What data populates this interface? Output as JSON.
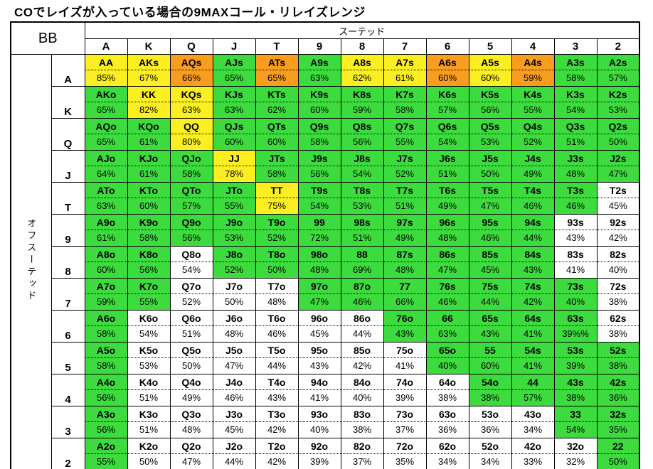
{
  "title": "COでレイズが入っている場合の9MAXコール・リレイズレンジ",
  "table": {
    "corner_label": "BB",
    "suited_header": "スーテッド",
    "offsuit_header": "オフスーテッド"
  },
  "colors": {
    "green": "#3ddc3e",
    "yellow": "#fbee21",
    "orange": "#f99d1f",
    "white": "#ffffff"
  },
  "chart_data": {
    "type": "heatmap",
    "title": "COでレイズが入っている場合の9MAXコール・リレイズレンジ",
    "columns": [
      "A",
      "K",
      "Q",
      "J",
      "T",
      "9",
      "8",
      "7",
      "6",
      "5",
      "4",
      "3",
      "2"
    ],
    "rows": [
      "A",
      "K",
      "Q",
      "J",
      "T",
      "9",
      "8",
      "7",
      "6",
      "5",
      "4",
      "3",
      "2"
    ],
    "cells": [
      [
        {
          "hand": "AA",
          "pct": "85%",
          "color": "yellow"
        },
        {
          "hand": "AKs",
          "pct": "67%",
          "color": "yellow"
        },
        {
          "hand": "AQs",
          "pct": "66%",
          "color": "orange"
        },
        {
          "hand": "AJs",
          "pct": "65%",
          "color": "green"
        },
        {
          "hand": "ATs",
          "pct": "65%",
          "color": "orange"
        },
        {
          "hand": "A9s",
          "pct": "63%",
          "color": "green"
        },
        {
          "hand": "A8s",
          "pct": "62%",
          "color": "yellow"
        },
        {
          "hand": "A7s",
          "pct": "61%",
          "color": "yellow"
        },
        {
          "hand": "A6s",
          "pct": "60%",
          "color": "orange"
        },
        {
          "hand": "A5s",
          "pct": "60%",
          "color": "yellow"
        },
        {
          "hand": "A4s",
          "pct": "59%",
          "color": "orange"
        },
        {
          "hand": "A3s",
          "pct": "58%",
          "color": "green"
        },
        {
          "hand": "A2s",
          "pct": "57%",
          "color": "green"
        }
      ],
      [
        {
          "hand": "AKo",
          "pct": "65%",
          "color": "green"
        },
        {
          "hand": "KK",
          "pct": "82%",
          "color": "yellow"
        },
        {
          "hand": "KQs",
          "pct": "63%",
          "color": "yellow"
        },
        {
          "hand": "KJs",
          "pct": "63%",
          "color": "green"
        },
        {
          "hand": "KTs",
          "pct": "62%",
          "color": "green"
        },
        {
          "hand": "K9s",
          "pct": "60%",
          "color": "green"
        },
        {
          "hand": "K8s",
          "pct": "59%",
          "color": "green"
        },
        {
          "hand": "K7s",
          "pct": "58%",
          "color": "green"
        },
        {
          "hand": "K6s",
          "pct": "57%",
          "color": "green"
        },
        {
          "hand": "K5s",
          "pct": "56%",
          "color": "green"
        },
        {
          "hand": "K4s",
          "pct": "55%",
          "color": "green"
        },
        {
          "hand": "K3s",
          "pct": "54%",
          "color": "green"
        },
        {
          "hand": "K2s",
          "pct": "53%",
          "color": "green"
        }
      ],
      [
        {
          "hand": "AQo",
          "pct": "65%",
          "color": "green"
        },
        {
          "hand": "KQo",
          "pct": "61%",
          "color": "green"
        },
        {
          "hand": "QQ",
          "pct": "80%",
          "color": "yellow"
        },
        {
          "hand": "QJs",
          "pct": "60%",
          "color": "green"
        },
        {
          "hand": "QTs",
          "pct": "60%",
          "color": "green"
        },
        {
          "hand": "Q9s",
          "pct": "58%",
          "color": "green"
        },
        {
          "hand": "Q8s",
          "pct": "56%",
          "color": "green"
        },
        {
          "hand": "Q7s",
          "pct": "55%",
          "color": "green"
        },
        {
          "hand": "Q6s",
          "pct": "54%",
          "color": "green"
        },
        {
          "hand": "Q5s",
          "pct": "53%",
          "color": "green"
        },
        {
          "hand": "Q4s",
          "pct": "52%",
          "color": "green"
        },
        {
          "hand": "Q3s",
          "pct": "51%",
          "color": "green"
        },
        {
          "hand": "Q2s",
          "pct": "50%",
          "color": "green"
        }
      ],
      [
        {
          "hand": "AJo",
          "pct": "64%",
          "color": "green"
        },
        {
          "hand": "KJo",
          "pct": "61%",
          "color": "green"
        },
        {
          "hand": "QJo",
          "pct": "58%",
          "color": "green"
        },
        {
          "hand": "JJ",
          "pct": "78%",
          "color": "yellow"
        },
        {
          "hand": "JTs",
          "pct": "58%",
          "color": "green"
        },
        {
          "hand": "J9s",
          "pct": "56%",
          "color": "green"
        },
        {
          "hand": "J8s",
          "pct": "54%",
          "color": "green"
        },
        {
          "hand": "J7s",
          "pct": "52%",
          "color": "green"
        },
        {
          "hand": "J6s",
          "pct": "51%",
          "color": "green"
        },
        {
          "hand": "J5s",
          "pct": "50%",
          "color": "green"
        },
        {
          "hand": "J4s",
          "pct": "49%",
          "color": "green"
        },
        {
          "hand": "J3s",
          "pct": "48%",
          "color": "green"
        },
        {
          "hand": "J2s",
          "pct": "47%",
          "color": "green"
        }
      ],
      [
        {
          "hand": "ATo",
          "pct": "63%",
          "color": "green"
        },
        {
          "hand": "KTo",
          "pct": "60%",
          "color": "green"
        },
        {
          "hand": "QTo",
          "pct": "57%",
          "color": "green"
        },
        {
          "hand": "JTo",
          "pct": "55%",
          "color": "green"
        },
        {
          "hand": "TT",
          "pct": "75%",
          "color": "yellow"
        },
        {
          "hand": "T9s",
          "pct": "54%",
          "color": "green"
        },
        {
          "hand": "T8s",
          "pct": "53%",
          "color": "green"
        },
        {
          "hand": "T7s",
          "pct": "51%",
          "color": "green"
        },
        {
          "hand": "T6s",
          "pct": "49%",
          "color": "green"
        },
        {
          "hand": "T5s",
          "pct": "47%",
          "color": "green"
        },
        {
          "hand": "T4s",
          "pct": "46%",
          "color": "green"
        },
        {
          "hand": "T3s",
          "pct": "46%",
          "color": "green"
        },
        {
          "hand": "T2s",
          "pct": "45%",
          "color": "white"
        }
      ],
      [
        {
          "hand": "A9o",
          "pct": "61%",
          "color": "green"
        },
        {
          "hand": "K9o",
          "pct": "58%",
          "color": "green"
        },
        {
          "hand": "Q9o",
          "pct": "56%",
          "color": "green"
        },
        {
          "hand": "J9o",
          "pct": "53%",
          "color": "green"
        },
        {
          "hand": "T9o",
          "pct": "52%",
          "color": "green"
        },
        {
          "hand": "99",
          "pct": "72%",
          "color": "green"
        },
        {
          "hand": "98s",
          "pct": "51%",
          "color": "green"
        },
        {
          "hand": "97s",
          "pct": "49%",
          "color": "green"
        },
        {
          "hand": "96s",
          "pct": "48%",
          "color": "green"
        },
        {
          "hand": "95s",
          "pct": "46%",
          "color": "green"
        },
        {
          "hand": "94s",
          "pct": "44%",
          "color": "green"
        },
        {
          "hand": "93s",
          "pct": "43%",
          "color": "white"
        },
        {
          "hand": "92s",
          "pct": "42%",
          "color": "white"
        }
      ],
      [
        {
          "hand": "A8o",
          "pct": "60%",
          "color": "green"
        },
        {
          "hand": "K8o",
          "pct": "56%",
          "color": "green"
        },
        {
          "hand": "Q8o",
          "pct": "54%",
          "color": "white"
        },
        {
          "hand": "J8o",
          "pct": "52%",
          "color": "green"
        },
        {
          "hand": "T8o",
          "pct": "50%",
          "color": "green"
        },
        {
          "hand": "98o",
          "pct": "48%",
          "color": "green"
        },
        {
          "hand": "88",
          "pct": "69%",
          "color": "green"
        },
        {
          "hand": "87s",
          "pct": "48%",
          "color": "green"
        },
        {
          "hand": "86s",
          "pct": "47%",
          "color": "green"
        },
        {
          "hand": "85s",
          "pct": "45%",
          "color": "green"
        },
        {
          "hand": "84s",
          "pct": "43%",
          "color": "green"
        },
        {
          "hand": "83s",
          "pct": "41%",
          "color": "white"
        },
        {
          "hand": "82s",
          "pct": "40%",
          "color": "white"
        }
      ],
      [
        {
          "hand": "A7o",
          "pct": "59%",
          "color": "green"
        },
        {
          "hand": "K7o",
          "pct": "55%",
          "color": "green"
        },
        {
          "hand": "Q7o",
          "pct": "52%",
          "color": "white"
        },
        {
          "hand": "J7o",
          "pct": "50%",
          "color": "white"
        },
        {
          "hand": "T7o",
          "pct": "48%",
          "color": "white"
        },
        {
          "hand": "97o",
          "pct": "47%",
          "color": "green"
        },
        {
          "hand": "87o",
          "pct": "46%",
          "color": "green"
        },
        {
          "hand": "77",
          "pct": "66%",
          "color": "green"
        },
        {
          "hand": "76s",
          "pct": "46%",
          "color": "green"
        },
        {
          "hand": "75s",
          "pct": "44%",
          "color": "green"
        },
        {
          "hand": "74s",
          "pct": "42%",
          "color": "green"
        },
        {
          "hand": "73s",
          "pct": "40%",
          "color": "green"
        },
        {
          "hand": "72s",
          "pct": "38%",
          "color": "white"
        }
      ],
      [
        {
          "hand": "A6o",
          "pct": "58%",
          "color": "green"
        },
        {
          "hand": "K6o",
          "pct": "54%",
          "color": "white"
        },
        {
          "hand": "Q6o",
          "pct": "51%",
          "color": "white"
        },
        {
          "hand": "J6o",
          "pct": "48%",
          "color": "white"
        },
        {
          "hand": "T6o",
          "pct": "46%",
          "color": "white"
        },
        {
          "hand": "96o",
          "pct": "45%",
          "color": "white"
        },
        {
          "hand": "86o",
          "pct": "44%",
          "color": "white"
        },
        {
          "hand": "76o",
          "pct": "43%",
          "color": "green"
        },
        {
          "hand": "66",
          "pct": "63%",
          "color": "green"
        },
        {
          "hand": "65s",
          "pct": "43%",
          "color": "green"
        },
        {
          "hand": "64s",
          "pct": "41%",
          "color": "green"
        },
        {
          "hand": "63s",
          "pct": "39%%",
          "color": "green"
        },
        {
          "hand": "62s",
          "pct": "38%",
          "color": "white"
        }
      ],
      [
        {
          "hand": "A5o",
          "pct": "58%",
          "color": "green"
        },
        {
          "hand": "K5o",
          "pct": "53%",
          "color": "white"
        },
        {
          "hand": "Q5o",
          "pct": "50%",
          "color": "white"
        },
        {
          "hand": "J5o",
          "pct": "47%",
          "color": "white"
        },
        {
          "hand": "T5o",
          "pct": "44%",
          "color": "white"
        },
        {
          "hand": "95o",
          "pct": "43%",
          "color": "white"
        },
        {
          "hand": "85o",
          "pct": "42%",
          "color": "white"
        },
        {
          "hand": "75o",
          "pct": "41%",
          "color": "white"
        },
        {
          "hand": "65o",
          "pct": "40%",
          "color": "green"
        },
        {
          "hand": "55",
          "pct": "60%",
          "color": "green"
        },
        {
          "hand": "54s",
          "pct": "41%",
          "color": "green"
        },
        {
          "hand": "53s",
          "pct": "39%",
          "color": "green"
        },
        {
          "hand": "52s",
          "pct": "38%",
          "color": "green"
        }
      ],
      [
        {
          "hand": "A4o",
          "pct": "56%",
          "color": "green"
        },
        {
          "hand": "K4o",
          "pct": "51%",
          "color": "white"
        },
        {
          "hand": "Q4o",
          "pct": "49%",
          "color": "white"
        },
        {
          "hand": "J4o",
          "pct": "46%",
          "color": "white"
        },
        {
          "hand": "T4o",
          "pct": "43%",
          "color": "white"
        },
        {
          "hand": "94o",
          "pct": "41%",
          "color": "white"
        },
        {
          "hand": "84o",
          "pct": "40%",
          "color": "white"
        },
        {
          "hand": "74o",
          "pct": "39%",
          "color": "white"
        },
        {
          "hand": "64o",
          "pct": "38%",
          "color": "white"
        },
        {
          "hand": "54o",
          "pct": "38%",
          "color": "green"
        },
        {
          "hand": "44",
          "pct": "57%",
          "color": "green"
        },
        {
          "hand": "43s",
          "pct": "38%",
          "color": "green"
        },
        {
          "hand": "42s",
          "pct": "36%",
          "color": "green"
        }
      ],
      [
        {
          "hand": "A3o",
          "pct": "56%",
          "color": "green"
        },
        {
          "hand": "K3o",
          "pct": "51%",
          "color": "white"
        },
        {
          "hand": "Q3o",
          "pct": "48%",
          "color": "white"
        },
        {
          "hand": "J3o",
          "pct": "45%",
          "color": "white"
        },
        {
          "hand": "T3o",
          "pct": "42%",
          "color": "white"
        },
        {
          "hand": "93o",
          "pct": "40%",
          "color": "white"
        },
        {
          "hand": "83o",
          "pct": "38%",
          "color": "white"
        },
        {
          "hand": "73o",
          "pct": "37%",
          "color": "white"
        },
        {
          "hand": "63o",
          "pct": "36%",
          "color": "white"
        },
        {
          "hand": "53o",
          "pct": "36%",
          "color": "white"
        },
        {
          "hand": "43o",
          "pct": "34%",
          "color": "white"
        },
        {
          "hand": "33",
          "pct": "54%",
          "color": "green"
        },
        {
          "hand": "32s",
          "pct": "35%",
          "color": "green"
        }
      ],
      [
        {
          "hand": "A2o",
          "pct": "55%",
          "color": "green"
        },
        {
          "hand": "K2o",
          "pct": "50%",
          "color": "white"
        },
        {
          "hand": "Q2o",
          "pct": "47%",
          "color": "white"
        },
        {
          "hand": "J2o",
          "pct": "44%",
          "color": "white"
        },
        {
          "hand": "T2o",
          "pct": "42%",
          "color": "white"
        },
        {
          "hand": "92o",
          "pct": "39%",
          "color": "white"
        },
        {
          "hand": "82o",
          "pct": "37%",
          "color": "white"
        },
        {
          "hand": "72o",
          "pct": "35%",
          "color": "white"
        },
        {
          "hand": "62o",
          "pct": "34%",
          "color": "white"
        },
        {
          "hand": "52o",
          "pct": "34%",
          "color": "white"
        },
        {
          "hand": "42o",
          "pct": "33%",
          "color": "white"
        },
        {
          "hand": "32o",
          "pct": "32%",
          "color": "white"
        },
        {
          "hand": "22",
          "pct": "50%",
          "color": "green"
        }
      ]
    ]
  }
}
